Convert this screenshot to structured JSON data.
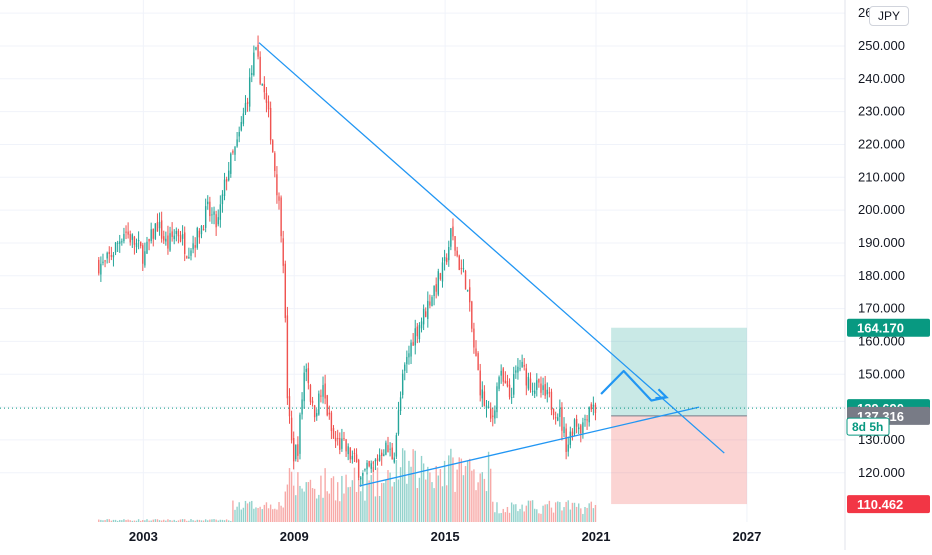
{
  "currency_button": "JPY",
  "chart_data": {
    "type": "candlestick",
    "y_ticks": [
      120,
      130,
      140,
      150,
      160,
      170,
      180,
      190,
      200,
      210,
      220,
      230,
      240,
      250,
      260
    ],
    "y_tick_labels": [
      "120.000",
      "130.000",
      "140.000",
      "150.000",
      "160.000",
      "170.000",
      "180.000",
      "190.000",
      "200.000",
      "210.000",
      "220.000",
      "230.000",
      "240.000",
      "250.000",
      "260.000"
    ],
    "ylim": [
      105,
      264
    ],
    "x_ticks": [
      2003,
      2009,
      2015,
      2021,
      2027
    ],
    "x_tick_labels": [
      "2003",
      "2009",
      "2015",
      "2021",
      "2027"
    ],
    "xlim": [
      1997.3,
      2030.9
    ],
    "grid": true,
    "price_path": [
      [
        2001.2,
        184
      ],
      [
        2001.5,
        183
      ],
      [
        2001.9,
        188
      ],
      [
        2002.3,
        194
      ],
      [
        2002.7,
        190
      ],
      [
        2003.1,
        186
      ],
      [
        2003.6,
        196
      ],
      [
        2004.0,
        189
      ],
      [
        2004.4,
        194
      ],
      [
        2004.8,
        188
      ],
      [
        2005.2,
        192
      ],
      [
        2005.6,
        200
      ],
      [
        2006.0,
        195
      ],
      [
        2006.4,
        212
      ],
      [
        2006.8,
        220
      ],
      [
        2007.2,
        235
      ],
      [
        2007.5,
        248
      ],
      [
        2007.8,
        238
      ],
      [
        2008.1,
        225
      ],
      [
        2008.4,
        205
      ],
      [
        2008.6,
        190
      ],
      [
        2008.8,
        140
      ],
      [
        2009.0,
        125
      ],
      [
        2009.2,
        128
      ],
      [
        2009.5,
        155
      ],
      [
        2009.8,
        138
      ],
      [
        2010.2,
        145
      ],
      [
        2010.6,
        130
      ],
      [
        2011.0,
        128
      ],
      [
        2011.4,
        124
      ],
      [
        2011.8,
        119
      ],
      [
        2012.2,
        122
      ],
      [
        2012.6,
        128
      ],
      [
        2013.0,
        125
      ],
      [
        2013.4,
        150
      ],
      [
        2013.8,
        162
      ],
      [
        2014.2,
        168
      ],
      [
        2014.6,
        176
      ],
      [
        2015.0,
        182
      ],
      [
        2015.3,
        193
      ],
      [
        2015.6,
        184
      ],
      [
        2015.9,
        178
      ],
      [
        2016.2,
        158
      ],
      [
        2016.5,
        144
      ],
      [
        2016.9,
        135
      ],
      [
        2017.2,
        150
      ],
      [
        2017.6,
        143
      ],
      [
        2018.0,
        153
      ],
      [
        2018.4,
        148
      ],
      [
        2018.8,
        145
      ],
      [
        2019.2,
        142
      ],
      [
        2019.6,
        138
      ],
      [
        2019.9,
        128
      ],
      [
        2020.2,
        136
      ],
      [
        2020.5,
        134
      ],
      [
        2020.8,
        141
      ],
      [
        2021.0,
        139.69
      ]
    ],
    "price_labels": [
      {
        "value": 164.17,
        "text": "164.170",
        "color": "#089981",
        "text_color": "#ffffff"
      },
      {
        "value": 139.69,
        "text": "139.690",
        "color": "#089981",
        "text_color": "#ffffff"
      },
      {
        "value": 137.316,
        "text": "137.316",
        "color": "#787b86",
        "text_color": "#ffffff"
      },
      {
        "value": 110.462,
        "text": "110.462",
        "color": "#f23645",
        "text_color": "#ffffff"
      }
    ],
    "countdown_label": {
      "text": "8d 5h",
      "value": 139.69
    },
    "current_price": 139.69,
    "position_tool": {
      "x_start": 2021.6,
      "x_end": 2027.0,
      "entry": 137.316,
      "target": 164.17,
      "stop": 110.462,
      "profit_color": "#26a69a",
      "loss_color": "#ef5350"
    },
    "trendlines": [
      {
        "name": "resistance",
        "points": [
          [
            2007.6,
            251
          ],
          [
            2026.1,
            126
          ]
        ],
        "color": "#2196f3"
      },
      {
        "name": "support",
        "points": [
          [
            2011.6,
            116
          ],
          [
            2025.1,
            140
          ]
        ],
        "color": "#2196f3"
      }
    ],
    "projection_path": {
      "points": [
        [
          2021.2,
          144
        ],
        [
          2022.1,
          151
        ],
        [
          2023.2,
          142
        ],
        [
          2023.8,
          143
        ]
      ],
      "color": "#2196f3"
    },
    "colors": {
      "up": "#26a69a",
      "down": "#ef5350",
      "volume_up": "#92d2cc",
      "volume_down": "#f7a9a7",
      "grid": "#f0f3fa",
      "axis_text": "#131722",
      "last_price_line": "#089981"
    }
  }
}
